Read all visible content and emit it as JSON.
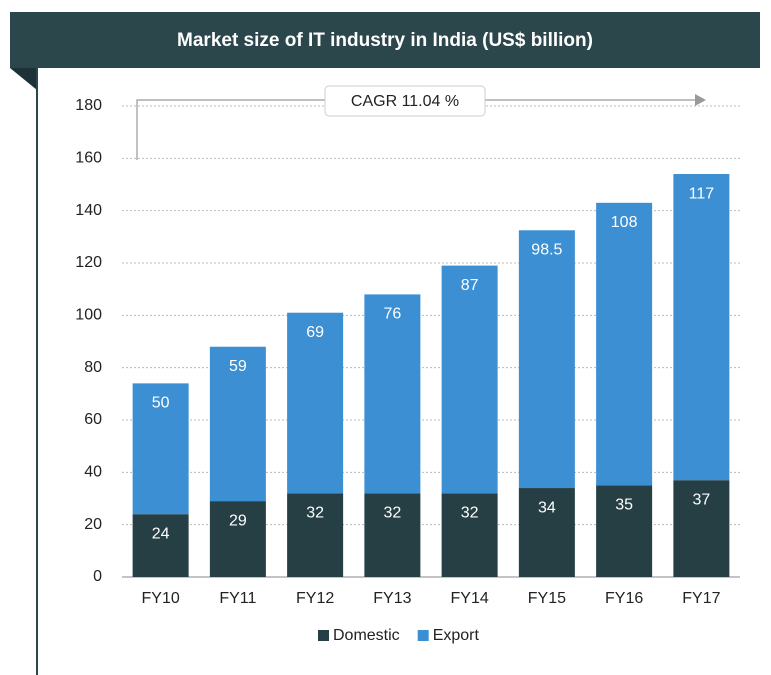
{
  "chart_data": {
    "type": "stacked_bar",
    "title": "Market size of IT industry in India (US$ billion)",
    "annotation": "CAGR 11.04 %",
    "categories": [
      "FY10",
      "FY11",
      "FY12",
      "FY13",
      "FY14",
      "FY15",
      "FY16",
      "FY17"
    ],
    "series": [
      {
        "name": "Domestic",
        "color": "#253f44",
        "values": [
          24,
          29,
          32,
          32,
          32,
          34,
          35,
          37
        ]
      },
      {
        "name": "Export",
        "color": "#3b8fd2",
        "values": [
          50,
          59,
          69,
          76,
          87,
          98.5,
          108,
          117
        ]
      }
    ],
    "ylim": [
      0,
      180
    ],
    "yticks": [
      0,
      20,
      40,
      60,
      80,
      100,
      120,
      140,
      160,
      180
    ],
    "grid": true,
    "legend": "bottom"
  }
}
